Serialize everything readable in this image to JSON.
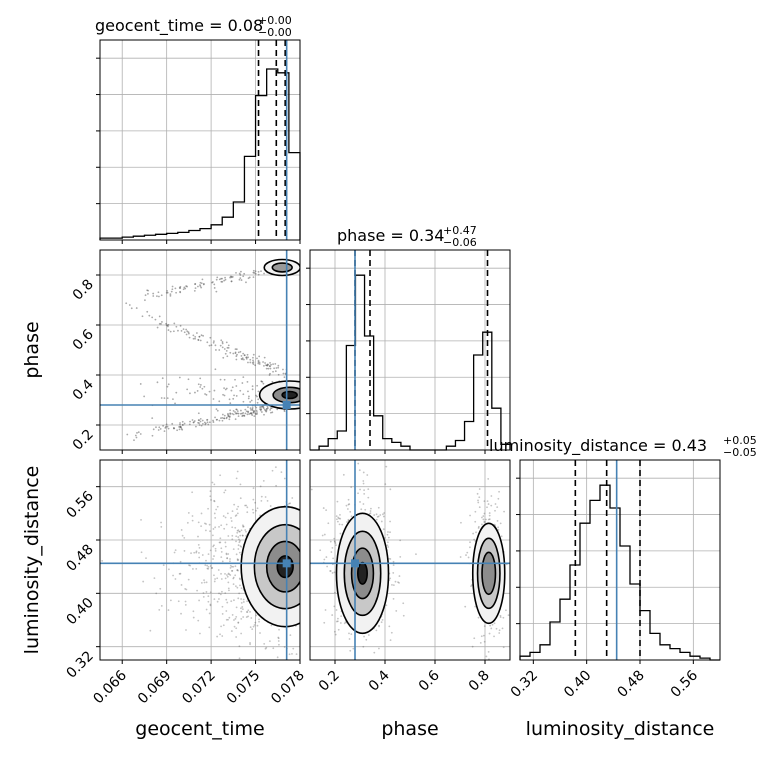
{
  "chart_data": {
    "type": "corner",
    "colors": {
      "truth": "#4682b4",
      "line": "#000000",
      "grid": "#b0b0b0",
      "points": "#555555"
    },
    "parameters": [
      {
        "name": "geocent_time",
        "axis_label": "geocent_time",
        "title": {
          "prefix": "geocent_time = 0.08",
          "plus": "+0.00",
          "minus": "−0.00"
        },
        "range": [
          0.0645,
          0.078
        ],
        "ticks": [
          "0.066",
          "0.069",
          "0.072",
          "0.075",
          "0.078"
        ],
        "tick_values": [
          0.066,
          0.069,
          0.072,
          0.075,
          0.078
        ],
        "truth": 0.0771,
        "quantiles": [
          0.0752,
          0.0764,
          0.077
        ],
        "hist": [
          0.01,
          0.01,
          0.015,
          0.02,
          0.025,
          0.03,
          0.035,
          0.04,
          0.05,
          0.06,
          0.08,
          0.12,
          0.2,
          0.44,
          0.76,
          0.9,
          0.88,
          0.46
        ]
      },
      {
        "name": "phase",
        "axis_label": "phase",
        "title": {
          "prefix": "phase = 0.34",
          "plus": "+0.47",
          "minus": "−0.06"
        },
        "range": [
          0.1,
          0.9
        ],
        "ticks": [
          "0.2",
          "0.4",
          "0.6",
          "0.8"
        ],
        "tick_values": [
          0.2,
          0.4,
          0.6,
          0.8
        ],
        "truth": 0.28,
        "quantiles": [
          0.28,
          0.34,
          0.81
        ],
        "hist": [
          0.0,
          0.02,
          0.06,
          0.1,
          0.55,
          0.92,
          0.6,
          0.18,
          0.06,
          0.04,
          0.02,
          0.0,
          0.0,
          0.0,
          0.0,
          0.02,
          0.05,
          0.15,
          0.5,
          0.62,
          0.22,
          0.03
        ]
      },
      {
        "name": "luminosity_distance",
        "axis_label": "luminosity_distance",
        "title": {
          "prefix": "luminosity_distance = 0.43",
          "plus": "+0.05",
          "minus": "−0.05"
        },
        "range": [
          0.3,
          0.6
        ],
        "ticks": [
          "0.32",
          "0.40",
          "0.48",
          "0.56"
        ],
        "tick_values": [
          0.32,
          0.4,
          0.48,
          0.56
        ],
        "truth": 0.445,
        "quantiles": [
          0.383,
          0.43,
          0.48
        ],
        "hist": [
          0.02,
          0.04,
          0.08,
          0.2,
          0.32,
          0.5,
          0.72,
          0.84,
          0.92,
          0.8,
          0.6,
          0.4,
          0.26,
          0.14,
          0.08,
          0.06,
          0.04,
          0.02,
          0.01,
          0.0
        ]
      }
    ],
    "pairs": [
      {
        "row": 1,
        "col": 0,
        "truth_point": [
          0.0771,
          0.28
        ]
      },
      {
        "row": 2,
        "col": 0,
        "truth_point": [
          0.0771,
          0.445
        ]
      },
      {
        "row": 2,
        "col": 1,
        "truth_point": [
          0.28,
          0.445
        ]
      }
    ]
  }
}
